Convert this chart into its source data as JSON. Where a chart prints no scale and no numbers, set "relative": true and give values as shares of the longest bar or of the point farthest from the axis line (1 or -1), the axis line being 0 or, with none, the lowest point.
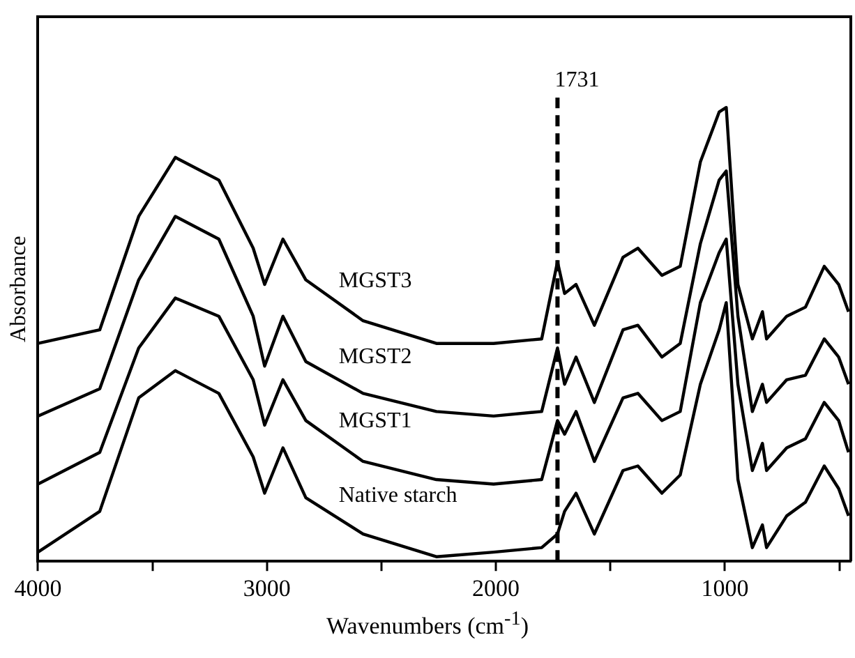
{
  "chart_data": {
    "type": "line",
    "xlabel": "Wavenumbers (cm$^{-1}$)",
    "ylabel": "Absorbance",
    "relative": true,
    "x": [
      4000,
      3730,
      3560,
      3400,
      3210,
      3060,
      3010,
      2930,
      2830,
      2580,
      2260,
      2010,
      1800,
      1731,
      1700,
      1650,
      1570,
      1445,
      1380,
      1275,
      1195,
      1107,
      1025,
      994,
      943,
      880,
      836,
      818,
      730,
      648,
      566,
      503,
      460
    ],
    "xlim": [
      4000,
      450
    ],
    "xticks": [
      4000,
      {
        "value": 3500,
        "label": null
      },
      3000,
      {
        "value": 2500,
        "label": null
      },
      2000,
      {
        "value": 1500,
        "label": null
      },
      1000,
      {
        "value": 500,
        "label": null
      }
    ],
    "tick_labels": "x",
    "grid": false,
    "legend": false,
    "marker": "none",
    "line_style": "solid",
    "series": [
      {
        "name": "Native starch",
        "color": "#000000",
        "values": [
          0.02,
          0.11,
          0.36,
          0.42,
          0.37,
          0.23,
          0.15,
          0.25,
          0.14,
          0.06,
          0.01,
          0.02,
          0.03,
          0.06,
          0.11,
          0.15,
          0.06,
          0.2,
          0.21,
          0.15,
          0.19,
          0.39,
          0.51,
          0.57,
          0.18,
          0.03,
          0.08,
          0.03,
          0.1,
          0.13,
          0.21,
          0.16,
          0.1
        ]
      },
      {
        "name": "MGST1",
        "color": "#000000",
        "values": [
          0.17,
          0.24,
          0.47,
          0.58,
          0.54,
          0.4,
          0.3,
          0.4,
          0.31,
          0.22,
          0.18,
          0.17,
          0.18,
          0.31,
          0.28,
          0.33,
          0.22,
          0.36,
          0.37,
          0.31,
          0.33,
          0.57,
          0.68,
          0.71,
          0.39,
          0.2,
          0.26,
          0.2,
          0.25,
          0.27,
          0.35,
          0.31,
          0.24
        ]
      },
      {
        "name": "MGST2",
        "color": "#000000",
        "values": [
          0.32,
          0.38,
          0.62,
          0.76,
          0.71,
          0.54,
          0.43,
          0.54,
          0.44,
          0.37,
          0.33,
          0.32,
          0.33,
          0.47,
          0.39,
          0.45,
          0.35,
          0.51,
          0.52,
          0.45,
          0.48,
          0.7,
          0.84,
          0.86,
          0.54,
          0.33,
          0.39,
          0.35,
          0.4,
          0.41,
          0.49,
          0.45,
          0.39
        ]
      },
      {
        "name": "MGST3",
        "color": "#000000",
        "values": [
          0.48,
          0.51,
          0.76,
          0.89,
          0.84,
          0.69,
          0.61,
          0.71,
          0.62,
          0.53,
          0.48,
          0.48,
          0.49,
          0.66,
          0.59,
          0.61,
          0.52,
          0.67,
          0.69,
          0.63,
          0.65,
          0.88,
          0.99,
          1,
          0.61,
          0.49,
          0.55,
          0.49,
          0.54,
          0.56,
          0.65,
          0.61,
          0.55
        ]
      }
    ],
    "ref_lines": [
      {
        "axis": "x",
        "value": 1731,
        "label": "1731",
        "color": "#000000",
        "line_style": "dashed"
      }
    ]
  }
}
